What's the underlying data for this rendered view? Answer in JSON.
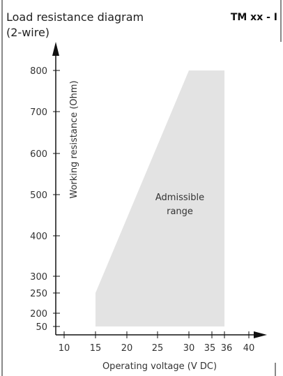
{
  "header": {
    "title_line1": "Load resistance diagram",
    "title_line2": "(2-wire)",
    "model": "TM xx - I"
  },
  "colors": {
    "region_fill": "#e3e3e3",
    "axis": "#111111",
    "text": "#222222"
  },
  "chart_data": {
    "type": "area",
    "title": "Load resistance diagram (2-wire)",
    "xlabel": "Operating voltage  (V DC)",
    "ylabel": "Working resistance  (Ohm)",
    "x_ticks": [
      10,
      15,
      20,
      25,
      30,
      35,
      36,
      40
    ],
    "y_ticks": [
      50,
      200,
      250,
      300,
      400,
      500,
      600,
      700,
      800
    ],
    "region": {
      "label_line1": "Admissible",
      "label_line2": "range",
      "polygon": [
        {
          "x": 15,
          "y": 50
        },
        {
          "x": 15,
          "y": 250
        },
        {
          "x": 30,
          "y": 800
        },
        {
          "x": 36,
          "y": 800
        },
        {
          "x": 36,
          "y": 50
        }
      ]
    }
  }
}
